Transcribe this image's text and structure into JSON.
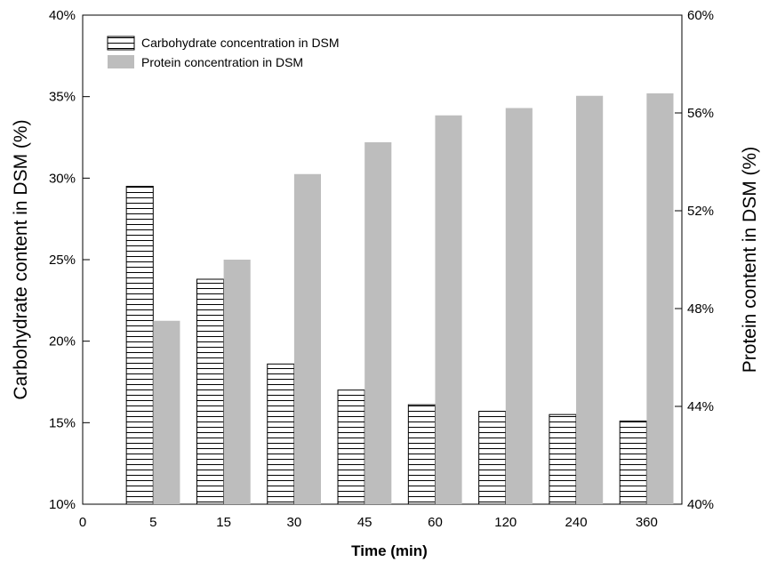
{
  "chart_data": {
    "type": "bar",
    "categories": [
      "5",
      "15",
      "30",
      "45",
      "60",
      "120",
      "240",
      "360"
    ],
    "x_origin_label": "0",
    "xlabel": "Time (min)",
    "series": [
      {
        "name": "Carbohydrate concentration in DSM",
        "axis": "left",
        "pattern": "horizontal-hatch",
        "values": [
          29.5,
          23.8,
          18.6,
          17.0,
          16.1,
          15.7,
          15.5,
          15.1
        ]
      },
      {
        "name": "Protein concentration in DSM",
        "axis": "right",
        "color": "#bdbdbd",
        "values": [
          47.5,
          50.0,
          53.5,
          54.8,
          55.9,
          56.2,
          56.7,
          56.8
        ]
      }
    ],
    "y_left": {
      "label": "Carbohydrate content in DSM (%)",
      "lim": [
        10,
        40
      ],
      "ticks": [
        "10%",
        "15%",
        "20%",
        "25%",
        "30%",
        "35%",
        "40%"
      ]
    },
    "y_right": {
      "label": "Protein content in DSM (%)",
      "lim": [
        40,
        60
      ],
      "ticks": [
        "40%",
        "44%",
        "48%",
        "52%",
        "56%",
        "60%"
      ]
    },
    "legend_position": "top-left",
    "grid": false
  }
}
